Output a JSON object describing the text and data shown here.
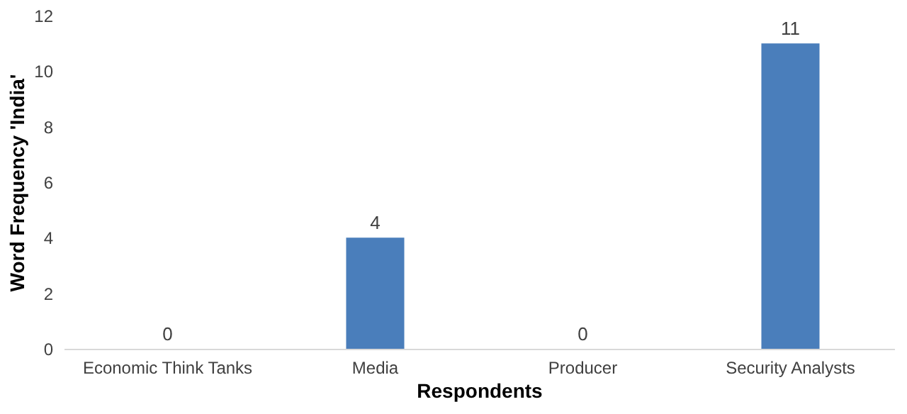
{
  "chart_data": {
    "type": "bar",
    "categories": [
      "Economic Think Tanks",
      "Media",
      "Producer",
      "Security Analysts"
    ],
    "values": [
      0,
      4,
      0,
      11
    ],
    "color": "#4a7ebb",
    "xlabel": "Respondents",
    "ylabel": "Word Frequency 'India'",
    "ylim": [
      0,
      12
    ],
    "yticks": [
      0,
      2,
      4,
      6,
      8,
      10,
      12
    ],
    "data_labels": true,
    "grid": false
  }
}
